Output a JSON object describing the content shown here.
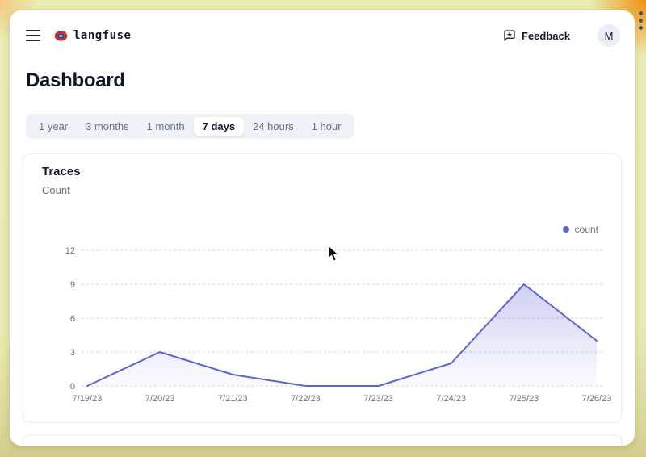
{
  "header": {
    "brand": "langfuse",
    "feedback_label": "Feedback",
    "avatar_initial": "M"
  },
  "page": {
    "title": "Dashboard"
  },
  "time_tabs": {
    "items": [
      "1 year",
      "3 months",
      "1 month",
      "7 days",
      "24 hours",
      "1 hour"
    ],
    "selected": "7 days"
  },
  "card": {
    "title": "Traces",
    "subtitle": "Count",
    "legend_label": "count"
  },
  "chart_data": {
    "type": "area",
    "title": "Traces",
    "ylabel": "Count",
    "x": [
      "7/19/23",
      "7/20/23",
      "7/21/23",
      "7/22/23",
      "7/23/23",
      "7/24/23",
      "7/25/23",
      "7/26/23"
    ],
    "series": [
      {
        "name": "count",
        "values": [
          0,
          3,
          1,
          0,
          0,
          2,
          9,
          4
        ]
      }
    ],
    "ylim": [
      0,
      12
    ],
    "yticks": [
      0,
      3,
      6,
      9,
      12
    ],
    "grid": "horizontal-dashed",
    "legend_position": "top-right",
    "colors": {
      "line": "#5b63d6",
      "area_top": "rgba(91,99,214,0.30)",
      "area_bottom": "rgba(91,99,214,0.02)",
      "gridline": "#cbd5e1",
      "tick_text": "#6b7280"
    }
  }
}
